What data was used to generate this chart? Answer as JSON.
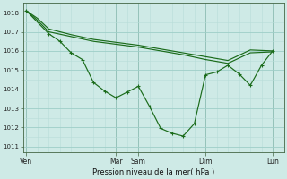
{
  "background_color": "#ceeae6",
  "grid_color_major": "#9ecec8",
  "grid_color_minor": "#b8ddd8",
  "line_color": "#1a6b1a",
  "title": "Pression niveau de la mer( hPa )",
  "xlabel_ticks": [
    "Ven",
    "Mar",
    "Sam",
    "Dim",
    "Lun"
  ],
  "xlabel_tick_positions": [
    0,
    8,
    10,
    16,
    22
  ],
  "xlim": [
    -0.3,
    23.0
  ],
  "ylim": [
    1010.7,
    1018.5
  ],
  "yticks": [
    1011,
    1012,
    1013,
    1014,
    1015,
    1016,
    1017,
    1018
  ],
  "series1_x": [
    0,
    2,
    3,
    4,
    5,
    6,
    7,
    8,
    9,
    10,
    11,
    12,
    13,
    14,
    15,
    16,
    17,
    18,
    19,
    20,
    21,
    22
  ],
  "series1_y": [
    1018.1,
    1016.9,
    1016.5,
    1015.9,
    1015.55,
    1014.35,
    1013.9,
    1013.55,
    1013.85,
    1014.15,
    1013.1,
    1011.95,
    1011.7,
    1011.55,
    1012.2,
    1014.75,
    1014.9,
    1015.25,
    1014.8,
    1014.2,
    1015.25,
    1016.0
  ],
  "series2_x": [
    0,
    1,
    2,
    4,
    6,
    8,
    10,
    12,
    14,
    16,
    18,
    20,
    22
  ],
  "series2_y": [
    1018.1,
    1017.7,
    1017.15,
    1016.85,
    1016.6,
    1016.45,
    1016.3,
    1016.1,
    1015.9,
    1015.7,
    1015.5,
    1016.05,
    1016.0
  ],
  "series3_x": [
    0,
    1,
    2,
    4,
    6,
    8,
    10,
    12,
    14,
    16,
    18,
    20,
    22
  ],
  "series3_y": [
    1018.1,
    1017.6,
    1017.0,
    1016.75,
    1016.5,
    1016.35,
    1016.2,
    1016.0,
    1015.8,
    1015.55,
    1015.35,
    1015.9,
    1015.95
  ],
  "vline_color": "#446644",
  "vline_positions": [
    0,
    8,
    10,
    16,
    22
  ]
}
